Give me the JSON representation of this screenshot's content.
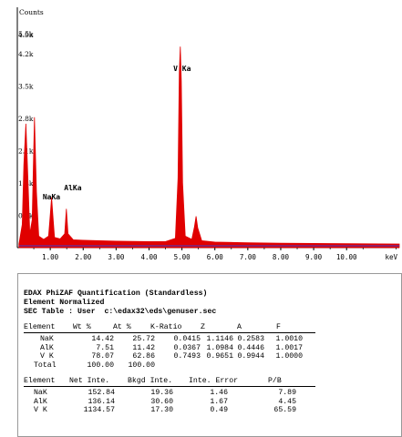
{
  "chart_data": {
    "type": "line",
    "title": "",
    "xlabel": "",
    "x_unit_label": "keV",
    "ylabel": "Counts",
    "xlim": [
      0.0,
      11.6
    ],
    "ylim": [
      0,
      5200
    ],
    "x_ticks": [
      "1.00",
      "2.00",
      "3.00",
      "4.00",
      "5.00",
      "6.00",
      "7.00",
      "8.00",
      "9.00",
      "10.00"
    ],
    "y_ticks": [
      {
        "label": "5.5k",
        "value": 5500
      },
      {
        "label": "4.9k",
        "value": 4900
      },
      {
        "label": "4.2k",
        "value": 4200
      },
      {
        "label": "3.5k",
        "value": 3500
      },
      {
        "label": "2.8k",
        "value": 2800
      },
      {
        "label": "2.1k",
        "value": 2100
      },
      {
        "label": "1.4k",
        "value": 1400
      },
      {
        "label": "0.7k",
        "value": 700
      }
    ],
    "peaks": [
      {
        "label": "V Ka",
        "energy": 4.95,
        "counts": 4350
      },
      {
        "label": "",
        "energy": 5.43,
        "counts": 680
      },
      {
        "label": "AlKa",
        "energy": 1.49,
        "counts": 840
      },
      {
        "label": "NaKa",
        "energy": 1.04,
        "counts": 1090
      },
      {
        "label": "",
        "energy": 0.26,
        "counts": 2680
      },
      {
        "label": "",
        "energy": 0.52,
        "counts": 2820
      }
    ],
    "series": [
      {
        "color": "#e00000",
        "points": [
          [
            0.05,
            80
          ],
          [
            0.15,
            500
          ],
          [
            0.2,
            1800
          ],
          [
            0.26,
            2680
          ],
          [
            0.32,
            1500
          ],
          [
            0.38,
            300
          ],
          [
            0.45,
            600
          ],
          [
            0.52,
            2820
          ],
          [
            0.58,
            1200
          ],
          [
            0.65,
            250
          ],
          [
            0.8,
            180
          ],
          [
            0.95,
            250
          ],
          [
            1.0,
            700
          ],
          [
            1.04,
            1090
          ],
          [
            1.08,
            700
          ],
          [
            1.13,
            220
          ],
          [
            1.3,
            190
          ],
          [
            1.44,
            300
          ],
          [
            1.49,
            840
          ],
          [
            1.54,
            300
          ],
          [
            1.7,
            170
          ],
          [
            2.0,
            160
          ],
          [
            2.5,
            150
          ],
          [
            3.0,
            140
          ],
          [
            3.5,
            135
          ],
          [
            4.0,
            130
          ],
          [
            4.5,
            130
          ],
          [
            4.8,
            200
          ],
          [
            4.88,
            1500
          ],
          [
            4.92,
            3800
          ],
          [
            4.95,
            4350
          ],
          [
            4.98,
            3600
          ],
          [
            5.02,
            1400
          ],
          [
            5.1,
            250
          ],
          [
            5.3,
            180
          ],
          [
            5.38,
            450
          ],
          [
            5.43,
            680
          ],
          [
            5.48,
            430
          ],
          [
            5.6,
            150
          ],
          [
            6.0,
            120
          ],
          [
            7.0,
            105
          ],
          [
            8.0,
            95
          ],
          [
            9.0,
            90
          ],
          [
            10.0,
            85
          ],
          [
            11.0,
            80
          ],
          [
            11.6,
            78
          ]
        ]
      }
    ]
  },
  "report": {
    "title_lines": [
      "EDAX PhiZAF Quantification (Standardless)",
      "Element Normalized",
      "SEC Table : User  c:\\edax32\\eds\\genuser.sec"
    ],
    "table1_header": [
      "Element",
      "Wt %",
      "At %",
      "K-Ratio",
      "Z",
      "A",
      "F"
    ],
    "table1_rows": [
      [
        "NaK",
        "14.42",
        "25.72",
        "0.0415",
        "1.1146",
        "0.2583",
        "1.0010"
      ],
      [
        "AlK",
        "7.51",
        "11.42",
        "0.0367",
        "1.0984",
        "0.4446",
        "1.0017"
      ],
      [
        "V K",
        "78.07",
        "62.86",
        "0.7493",
        "0.9651",
        "0.9944",
        "1.0000"
      ],
      [
        "Total",
        "100.00",
        "100.00",
        "",
        "",
        "",
        ""
      ]
    ],
    "table2_header": [
      "Element",
      "Net Inte.",
      "Bkgd Inte.",
      "Inte. Error",
      "P/B"
    ],
    "table2_rows": [
      [
        "NaK",
        "152.84",
        "19.36",
        "1.46",
        "7.89"
      ],
      [
        "AlK",
        "136.14",
        "30.60",
        "1.67",
        "4.45"
      ],
      [
        "V K",
        "1134.57",
        "17.30",
        "0.49",
        "65.59"
      ]
    ]
  }
}
